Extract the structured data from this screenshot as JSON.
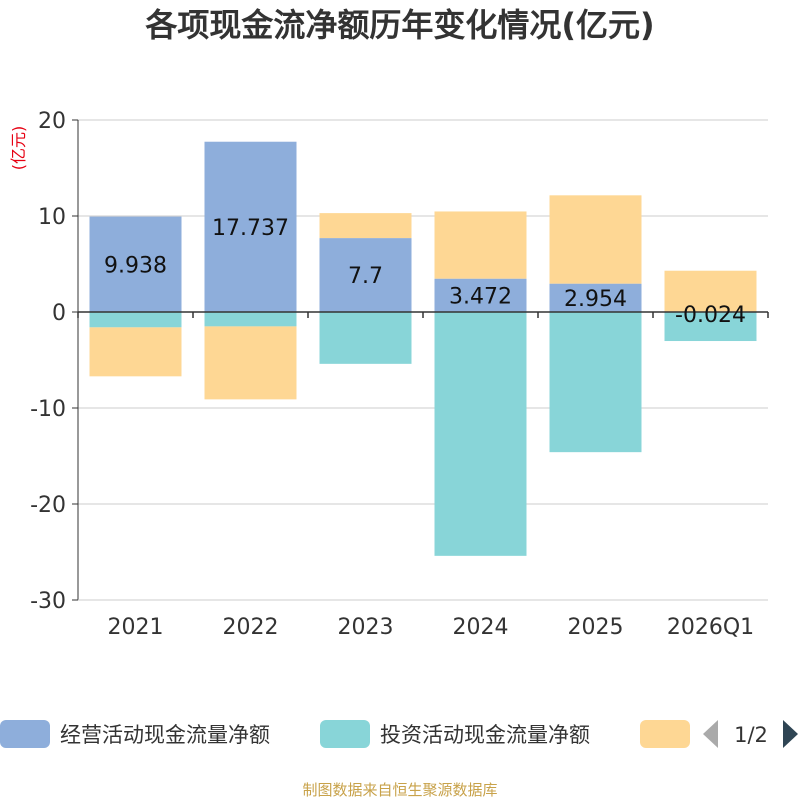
{
  "chart_data": {
    "type": "bar",
    "stacked": true,
    "title": "各项现金流净额历年变化情况(亿元)",
    "ylabel": "(亿元)",
    "ylim": [
      -30,
      20
    ],
    "yticks": [
      20,
      10,
      0,
      -10,
      -20,
      -30
    ],
    "categories": [
      "2021",
      "2022",
      "2023",
      "2024",
      "2025",
      "2026Q1"
    ],
    "series": [
      {
        "name": "经营活动现金流量净额",
        "color": "#8eaedb",
        "values": [
          9.938,
          17.737,
          7.7,
          3.472,
          2.954,
          -0.024
        ],
        "labels": [
          "9.938",
          "17.737",
          "7.7",
          "3.472",
          "2.954",
          "-0.024"
        ]
      },
      {
        "name": "投资活动现金流量净额",
        "color": "#88d5d8",
        "values": [
          -1.6,
          -1.5,
          -5.4,
          -25.4,
          -14.6,
          -3.0
        ]
      },
      {
        "name": "",
        "color": "#fed794",
        "values": [
          -5.1,
          -7.6,
          2.6,
          7.0,
          9.2,
          4.3
        ]
      }
    ],
    "legend": {
      "position": "bottom",
      "page": "1/2"
    }
  },
  "source": "制图数据来自恒生聚源数据库"
}
